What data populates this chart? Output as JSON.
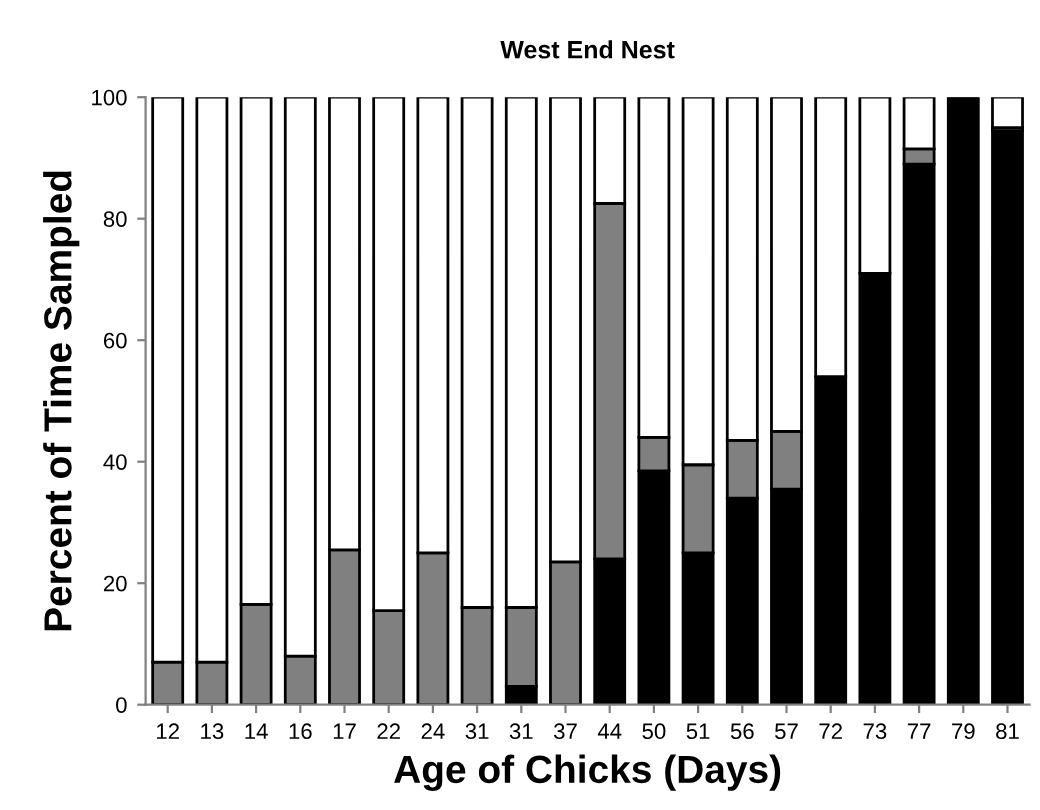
{
  "chart_data": {
    "type": "bar",
    "title": "West End Nest",
    "xlabel": "Age of Chicks (Days)",
    "ylabel": "Percent of Time Sampled",
    "categories": [
      "12",
      "13",
      "14",
      "16",
      "17",
      "22",
      "24",
      "31",
      "31",
      "37",
      "44",
      "50",
      "51",
      "56",
      "57",
      "72",
      "73",
      "77",
      "79",
      "81"
    ],
    "stacked": true,
    "ylim": [
      0,
      100
    ],
    "yticks": [
      0,
      20,
      40,
      60,
      80,
      100
    ],
    "grid": false,
    "legend": false,
    "series": [
      {
        "color": "#000000",
        "values": [
          null,
          null,
          null,
          null,
          null,
          null,
          null,
          null,
          3,
          null,
          24,
          38.5,
          25,
          34,
          35.5,
          54,
          71,
          89,
          100,
          94.5
        ]
      },
      {
        "color": "#808080",
        "values": [
          7,
          7,
          16.5,
          8,
          25.5,
          15.5,
          25,
          16,
          13,
          23.5,
          58.5,
          5.5,
          14.5,
          9.5,
          9.5,
          null,
          null,
          2.5,
          null,
          0.5
        ]
      },
      {
        "color": "#ffffff",
        "values": [
          93,
          93,
          83.5,
          92,
          74.5,
          84.5,
          75,
          84,
          84,
          76.5,
          17.5,
          56,
          60.5,
          56.5,
          55,
          46,
          29,
          8.5,
          null,
          5
        ]
      }
    ]
  }
}
